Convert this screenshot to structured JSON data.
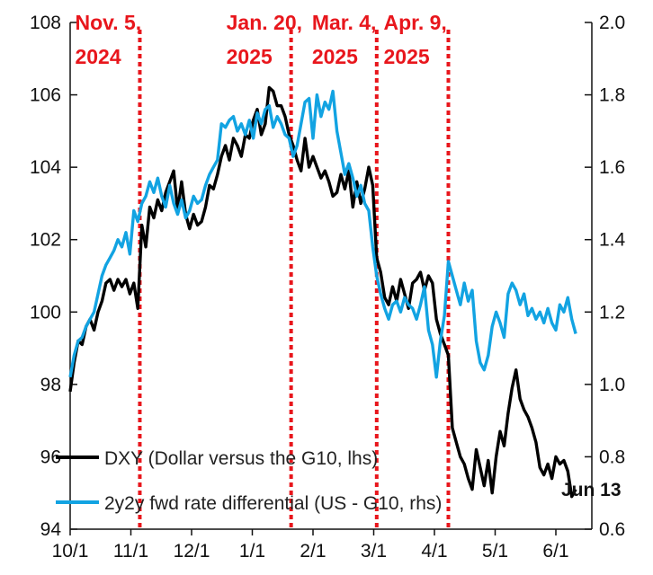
{
  "chart_data": {
    "type": "line",
    "x_ticks": [
      "10/1",
      "11/1",
      "12/1",
      "1/1",
      "2/1",
      "3/1",
      "4/1",
      "5/1",
      "6/1"
    ],
    "left_axis": {
      "label": "lhs",
      "range": [
        94,
        108
      ],
      "ticks": [
        "94",
        "96",
        "98",
        "100",
        "102",
        "104",
        "106",
        "108"
      ]
    },
    "right_axis": {
      "label": "rhs",
      "range": [
        0.6,
        2.0
      ],
      "ticks": [
        "0.6",
        "0.8",
        "1.0",
        "1.2",
        "1.4",
        "1.6",
        "1.8",
        "2.0"
      ]
    },
    "events": [
      {
        "day": 35,
        "line1": "Nov. 5,",
        "line2": "2024"
      },
      {
        "day": 111,
        "line1": "Jan. 20,",
        "line2": "2025"
      },
      {
        "day": 154,
        "line1": "Mar. 4,",
        "line2": "2025"
      },
      {
        "day": 190,
        "line1": "Apr. 9,",
        "line2": "2025"
      }
    ],
    "series": [
      {
        "name": "DXY (Dollar versus the G10, lhs)",
        "axis": "left",
        "color": "#000000",
        "x": [
          0,
          2,
          4,
          6,
          8,
          10,
          12,
          14,
          16,
          18,
          20,
          22,
          24,
          26,
          28,
          30,
          32,
          34,
          36,
          38,
          40,
          42,
          44,
          46,
          48,
          50,
          52,
          54,
          56,
          58,
          60,
          62,
          64,
          66,
          68,
          70,
          72,
          74,
          76,
          78,
          80,
          82,
          84,
          86,
          88,
          90,
          92,
          94,
          96,
          98,
          100,
          102,
          104,
          106,
          108,
          110,
          112,
          114,
          116,
          118,
          120,
          122,
          124,
          126,
          128,
          130,
          132,
          134,
          136,
          138,
          140,
          142,
          144,
          146,
          148,
          150,
          152,
          154,
          156,
          158,
          160,
          162,
          164,
          166,
          168,
          170,
          172,
          174,
          176,
          178,
          180,
          182,
          184,
          186,
          188,
          190,
          192,
          194,
          196,
          198,
          200,
          202,
          204,
          206,
          208,
          210,
          212,
          214,
          216,
          218,
          220,
          222,
          224,
          226,
          228,
          230,
          232,
          234,
          236,
          238,
          240,
          242,
          244,
          246,
          248,
          250,
          252,
          254
        ],
        "values": [
          97.8,
          98.6,
          99.2,
          99.1,
          99.6,
          99.8,
          99.5,
          100.0,
          100.3,
          100.8,
          100.9,
          100.6,
          100.9,
          100.7,
          100.9,
          100.5,
          100.8,
          100.1,
          102.4,
          101.8,
          102.9,
          102.6,
          103.1,
          102.8,
          103.3,
          103.6,
          103.9,
          102.8,
          103.6,
          102.7,
          102.3,
          102.7,
          102.4,
          102.5,
          102.9,
          103.5,
          103.4,
          103.8,
          104.3,
          104.6,
          104.2,
          104.8,
          104.6,
          104.3,
          104.9,
          104.8,
          105.3,
          105.6,
          104.9,
          105.2,
          106.2,
          106.1,
          105.7,
          105.7,
          105.4,
          104.9,
          104.6,
          104.2,
          103.9,
          104.8,
          104.0,
          104.3,
          104.0,
          103.7,
          103.9,
          103.6,
          103.2,
          103.3,
          103.8,
          103.4,
          103.9,
          102.9,
          103.6,
          103.0,
          103.4,
          104.0,
          103.5,
          101.5,
          101.1,
          100.4,
          100.2,
          100.7,
          100.3,
          100.9,
          100.5,
          100.1,
          100.8,
          100.9,
          101.1,
          100.6,
          101.0,
          100.8,
          99.8,
          99.4,
          99.1,
          98.8,
          96.8,
          96.4,
          96.0,
          95.8,
          95.4,
          95.1,
          96.2,
          95.7,
          95.2,
          95.9,
          95.0,
          96.0,
          96.7,
          96.3,
          97.2,
          97.9,
          98.4,
          97.6,
          97.3,
          97.1,
          96.8,
          96.4,
          95.7,
          95.5,
          95.8,
          95.4,
          96.0,
          95.8,
          95.9,
          95.6,
          94.9,
          95.1
        ]
      },
      {
        "name": "2y2y fwd rate differential (US - G10, rhs)",
        "axis": "right",
        "color": "#12a3e2",
        "x": [
          0,
          2,
          4,
          6,
          8,
          10,
          12,
          14,
          16,
          18,
          20,
          22,
          24,
          26,
          28,
          30,
          32,
          34,
          36,
          38,
          40,
          42,
          44,
          46,
          48,
          50,
          52,
          54,
          56,
          58,
          60,
          62,
          64,
          66,
          68,
          70,
          72,
          74,
          76,
          78,
          80,
          82,
          84,
          86,
          88,
          90,
          92,
          94,
          96,
          98,
          100,
          102,
          104,
          106,
          108,
          110,
          112,
          114,
          116,
          118,
          120,
          122,
          124,
          126,
          128,
          130,
          132,
          134,
          136,
          138,
          140,
          142,
          144,
          146,
          148,
          150,
          152,
          154,
          156,
          158,
          160,
          162,
          164,
          166,
          168,
          170,
          172,
          174,
          176,
          178,
          180,
          182,
          184,
          186,
          188,
          190,
          192,
          194,
          196,
          198,
          200,
          202,
          204,
          206,
          208,
          210,
          212,
          214,
          216,
          218,
          220,
          222,
          224,
          226,
          228,
          230,
          232,
          234,
          236,
          238,
          240,
          242,
          244,
          246,
          248,
          250,
          252,
          254
        ],
        "values": [
          1.02,
          1.08,
          1.12,
          1.13,
          1.16,
          1.18,
          1.2,
          1.25,
          1.3,
          1.33,
          1.35,
          1.37,
          1.4,
          1.38,
          1.42,
          1.36,
          1.48,
          1.45,
          1.5,
          1.52,
          1.56,
          1.53,
          1.57,
          1.52,
          1.49,
          1.55,
          1.5,
          1.47,
          1.51,
          1.46,
          1.48,
          1.52,
          1.5,
          1.51,
          1.55,
          1.58,
          1.6,
          1.62,
          1.72,
          1.71,
          1.73,
          1.74,
          1.7,
          1.72,
          1.69,
          1.73,
          1.68,
          1.75,
          1.72,
          1.76,
          1.77,
          1.71,
          1.74,
          1.72,
          1.69,
          1.68,
          1.63,
          1.66,
          1.72,
          1.78,
          1.79,
          1.68,
          1.8,
          1.74,
          1.78,
          1.76,
          1.81,
          1.7,
          1.64,
          1.58,
          1.61,
          1.57,
          1.52,
          1.55,
          1.5,
          1.48,
          1.38,
          1.3,
          1.25,
          1.21,
          1.18,
          1.22,
          1.23,
          1.2,
          1.24,
          1.22,
          1.21,
          1.18,
          1.22,
          1.27,
          1.15,
          1.11,
          1.02,
          1.12,
          1.19,
          1.34,
          1.3,
          1.26,
          1.22,
          1.28,
          1.23,
          1.26,
          1.12,
          1.06,
          1.04,
          1.08,
          1.16,
          1.2,
          1.17,
          1.13,
          1.25,
          1.28,
          1.26,
          1.22,
          1.25,
          1.19,
          1.21,
          1.18,
          1.2,
          1.17,
          1.21,
          1.17,
          1.15,
          1.22,
          1.2,
          1.24,
          1.18,
          1.14
        ]
      }
    ],
    "end_label": "Jun 13"
  }
}
